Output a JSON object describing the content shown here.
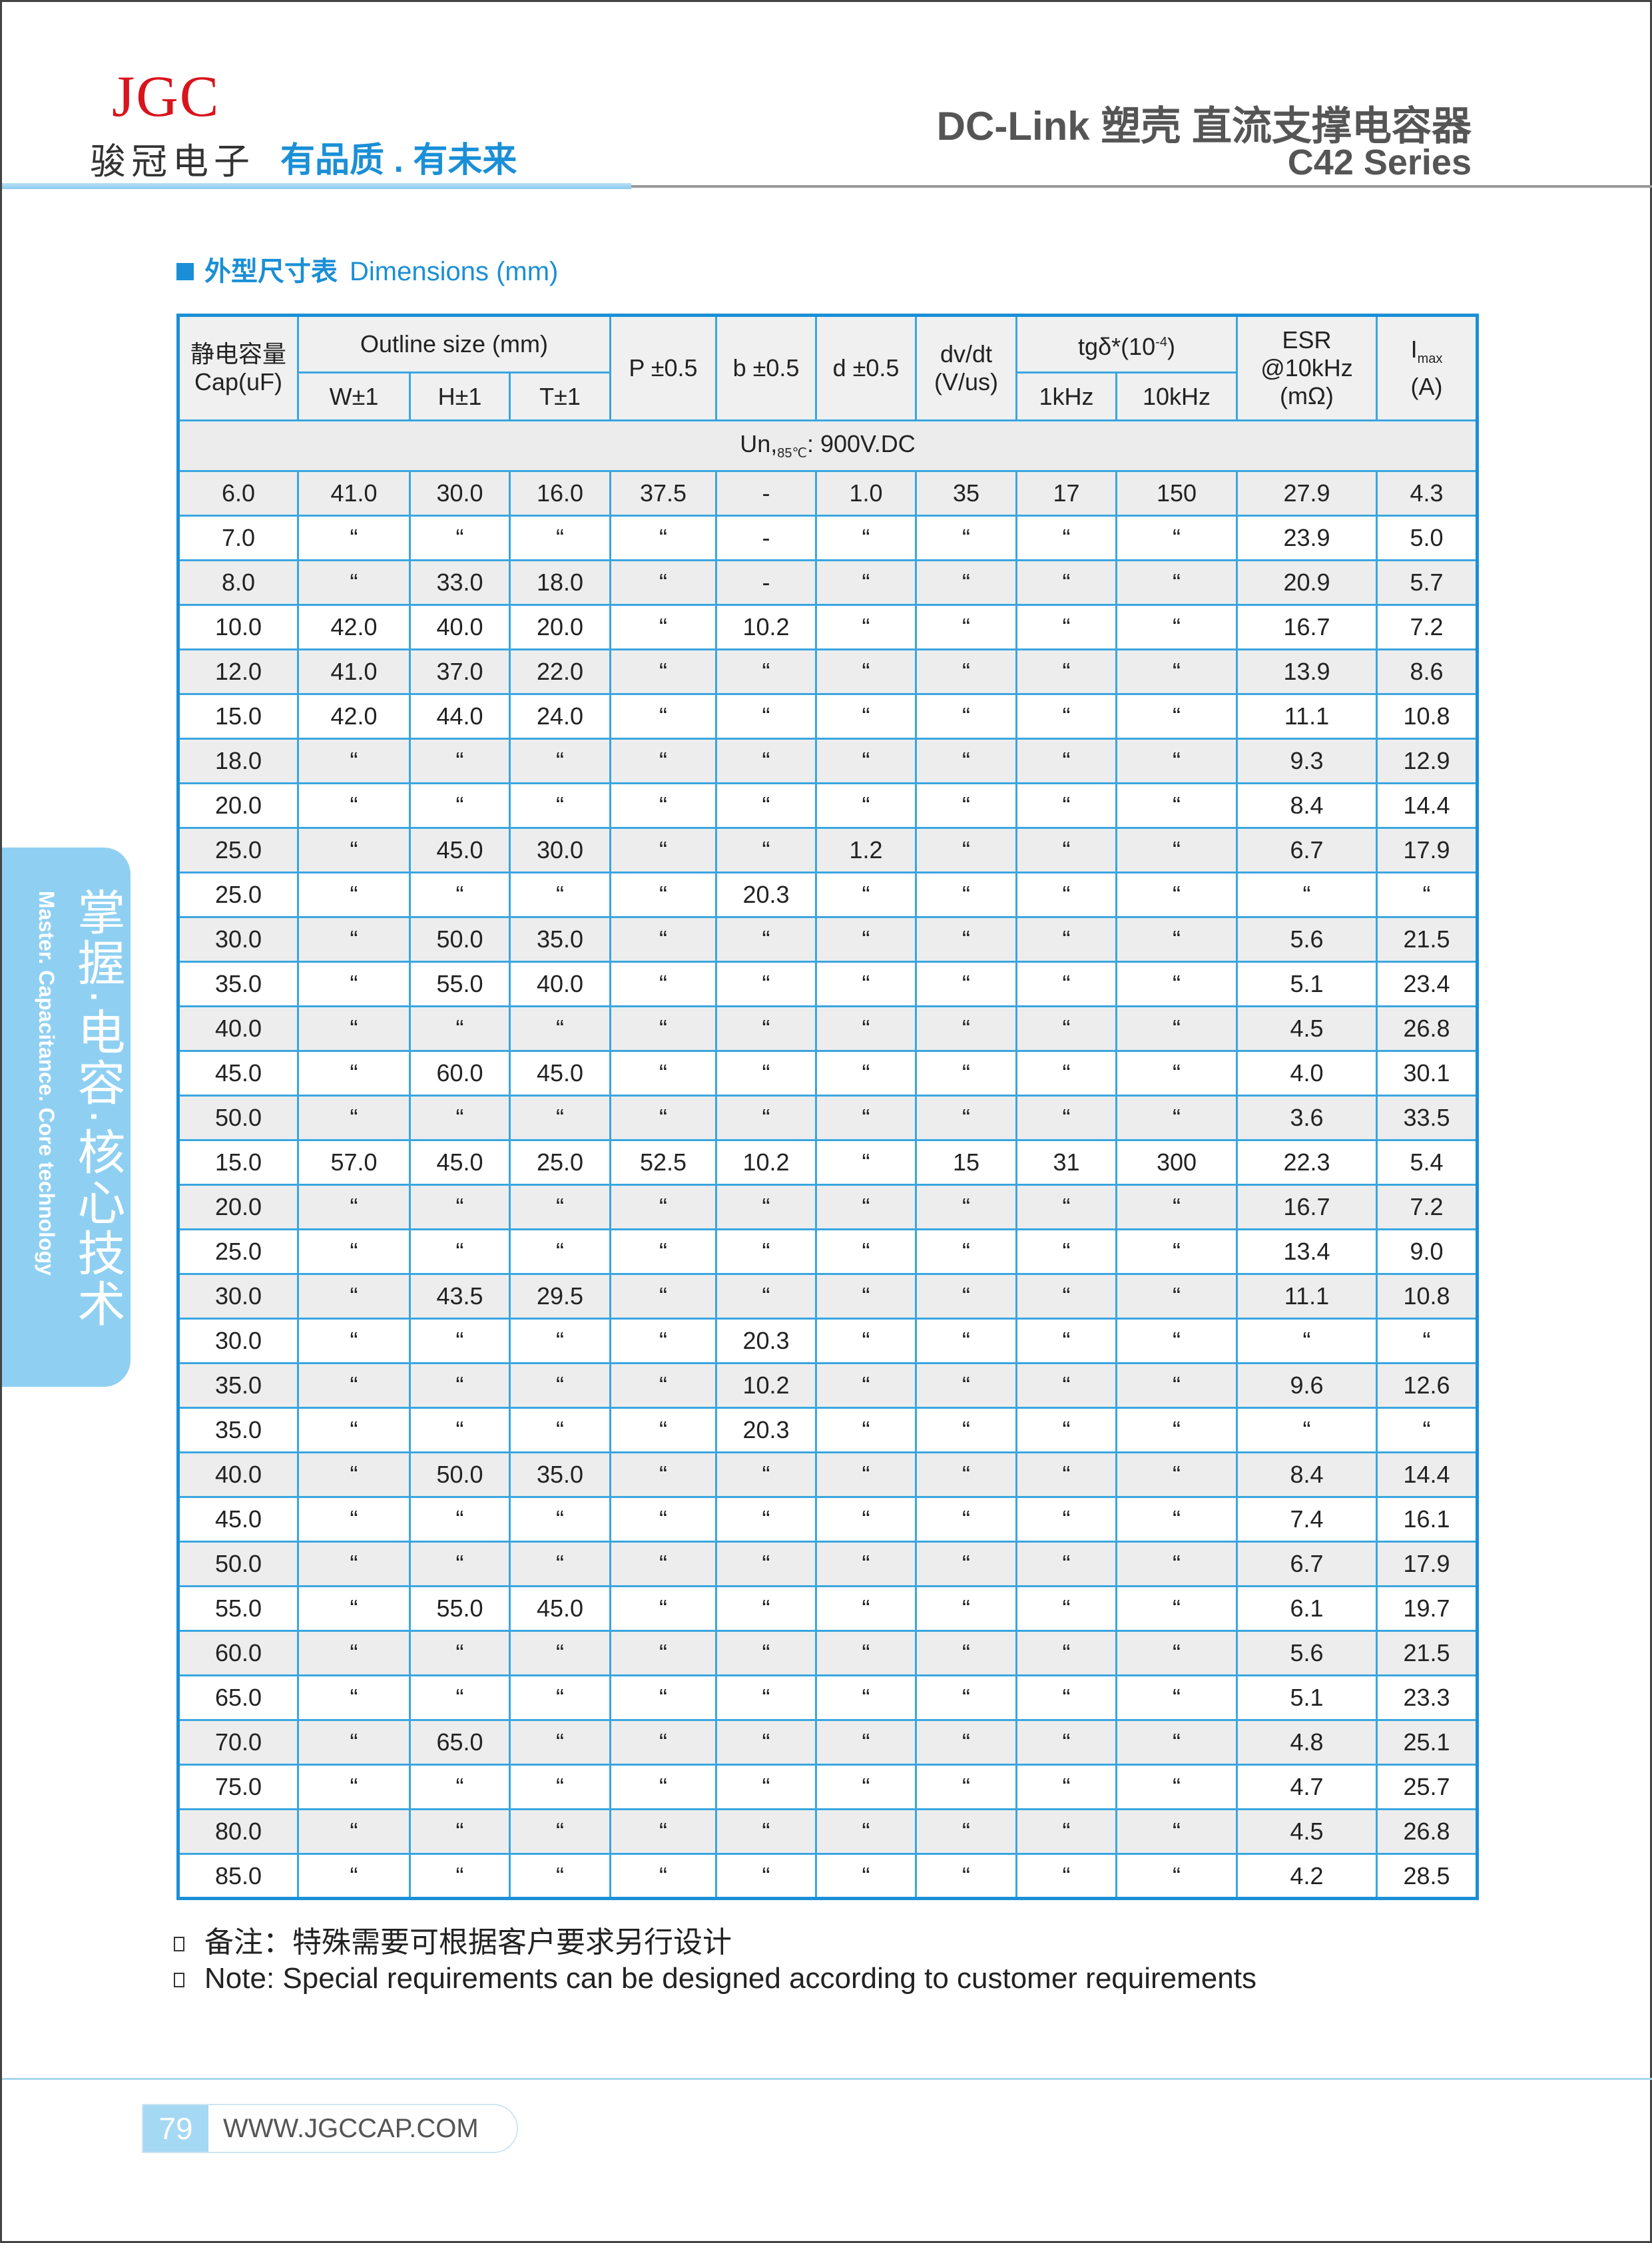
{
  "header": {
    "logo": "JGC",
    "brand_cn": "骏冠电子",
    "slogan": "有品质 . 有未来",
    "title": "DC-Link 塑壳 直流支撑电容器",
    "series": "C42 Series"
  },
  "section": {
    "title_cn": "外型尺寸表",
    "title_en": "Dimensions (mm)"
  },
  "table": {
    "headers": {
      "cap": "静电容量 Cap(uF)",
      "outline": "Outline size (mm)",
      "w": "W±1",
      "h": "H±1",
      "t": "T±1",
      "p": "P ±0.5",
      "b": "b ±0.5",
      "d": "d ±0.5",
      "dvdt": "dv/dt (V/us)",
      "tg_main": "tgδ*(10",
      "tg_exp": "-4",
      "tg_close": ")",
      "tg1": "1kHz",
      "tg10": "10kHz",
      "esr": "ESR @10kHz (mΩ)",
      "imax_i": "I",
      "imax_sub": "max",
      "imax_unit": "(A)"
    },
    "voltage_row": {
      "prefix": "Un,",
      "sub": "85℃",
      "value": ": 900V.DC"
    },
    "rows": [
      [
        "6.0",
        "41.0",
        "30.0",
        "16.0",
        "37.5",
        "-",
        "1.0",
        "35",
        "17",
        "150",
        "27.9",
        "4.3"
      ],
      [
        "7.0",
        "“",
        "“",
        "“",
        "“",
        "-",
        "“",
        "“",
        "“",
        "“",
        "23.9",
        "5.0"
      ],
      [
        "8.0",
        "“",
        "33.0",
        "18.0",
        "“",
        "-",
        "“",
        "“",
        "“",
        "“",
        "20.9",
        "5.7"
      ],
      [
        "10.0",
        "42.0",
        "40.0",
        "20.0",
        "“",
        "10.2",
        "“",
        "“",
        "“",
        "“",
        "16.7",
        "7.2"
      ],
      [
        "12.0",
        "41.0",
        "37.0",
        "22.0",
        "“",
        "“",
        "“",
        "“",
        "“",
        "“",
        "13.9",
        "8.6"
      ],
      [
        "15.0",
        "42.0",
        "44.0",
        "24.0",
        "“",
        "“",
        "“",
        "“",
        "“",
        "“",
        "11.1",
        "10.8"
      ],
      [
        "18.0",
        "“",
        "“",
        "“",
        "“",
        "“",
        "“",
        "“",
        "“",
        "“",
        "9.3",
        "12.9"
      ],
      [
        "20.0",
        "“",
        "“",
        "“",
        "“",
        "“",
        "“",
        "“",
        "“",
        "“",
        "8.4",
        "14.4"
      ],
      [
        "25.0",
        "“",
        "45.0",
        "30.0",
        "“",
        "“",
        "1.2",
        "“",
        "“",
        "“",
        "6.7",
        "17.9"
      ],
      [
        "25.0",
        "“",
        "“",
        "“",
        "“",
        "20.3",
        "“",
        "“",
        "“",
        "“",
        "“",
        "“"
      ],
      [
        "30.0",
        "“",
        "50.0",
        "35.0",
        "“",
        "“",
        "“",
        "“",
        "“",
        "“",
        "5.6",
        "21.5"
      ],
      [
        "35.0",
        "“",
        "55.0",
        "40.0",
        "“",
        "“",
        "“",
        "“",
        "“",
        "“",
        "5.1",
        "23.4"
      ],
      [
        "40.0",
        "“",
        "“",
        "“",
        "“",
        "“",
        "“",
        "“",
        "“",
        "“",
        "4.5",
        "26.8"
      ],
      [
        "45.0",
        "“",
        "60.0",
        "45.0",
        "“",
        "“",
        "“",
        "“",
        "“",
        "“",
        "4.0",
        "30.1"
      ],
      [
        "50.0",
        "“",
        "“",
        "“",
        "“",
        "“",
        "“",
        "“",
        "“",
        "“",
        "3.6",
        "33.5"
      ],
      [
        "15.0",
        "57.0",
        "45.0",
        "25.0",
        "52.5",
        "10.2",
        "“",
        "15",
        "31",
        "300",
        "22.3",
        "5.4"
      ],
      [
        "20.0",
        "“",
        "“",
        "“",
        "“",
        "“",
        "“",
        "“",
        "“",
        "“",
        "16.7",
        "7.2"
      ],
      [
        "25.0",
        "“",
        "“",
        "“",
        "“",
        "“",
        "“",
        "“",
        "“",
        "“",
        "13.4",
        "9.0"
      ],
      [
        "30.0",
        "“",
        "43.5",
        "29.5",
        "“",
        "“",
        "“",
        "“",
        "“",
        "“",
        "11.1",
        "10.8"
      ],
      [
        "30.0",
        "“",
        "“",
        "“",
        "“",
        "20.3",
        "“",
        "“",
        "“",
        "“",
        "“",
        "“"
      ],
      [
        "35.0",
        "“",
        "“",
        "“",
        "“",
        "10.2",
        "“",
        "“",
        "“",
        "“",
        "9.6",
        "12.6"
      ],
      [
        "35.0",
        "“",
        "“",
        "“",
        "“",
        "20.3",
        "“",
        "“",
        "“",
        "“",
        "“",
        "“"
      ],
      [
        "40.0",
        "“",
        "50.0",
        "35.0",
        "“",
        "“",
        "“",
        "“",
        "“",
        "“",
        "8.4",
        "14.4"
      ],
      [
        "45.0",
        "“",
        "“",
        "“",
        "“",
        "“",
        "“",
        "“",
        "“",
        "“",
        "7.4",
        "16.1"
      ],
      [
        "50.0",
        "“",
        "“",
        "“",
        "“",
        "“",
        "“",
        "“",
        "“",
        "“",
        "6.7",
        "17.9"
      ],
      [
        "55.0",
        "“",
        "55.0",
        "45.0",
        "“",
        "“",
        "“",
        "“",
        "“",
        "“",
        "6.1",
        "19.7"
      ],
      [
        "60.0",
        "“",
        "“",
        "“",
        "“",
        "“",
        "“",
        "“",
        "“",
        "“",
        "5.6",
        "21.5"
      ],
      [
        "65.0",
        "“",
        "“",
        "“",
        "“",
        "“",
        "“",
        "“",
        "“",
        "“",
        "5.1",
        "23.3"
      ],
      [
        "70.0",
        "“",
        "65.0",
        "“",
        "“",
        "“",
        "“",
        "“",
        "“",
        "“",
        "4.8",
        "25.1"
      ],
      [
        "75.0",
        "“",
        "“",
        "“",
        "“",
        "“",
        "“",
        "“",
        "“",
        "“",
        "4.7",
        "25.7"
      ],
      [
        "80.0",
        "“",
        "“",
        "“",
        "“",
        "“",
        "“",
        "“",
        "“",
        "“",
        "4.5",
        "26.8"
      ],
      [
        "85.0",
        "“",
        "“",
        "“",
        "“",
        "“",
        "“",
        "“",
        "“",
        "“",
        "4.2",
        "28.5"
      ]
    ]
  },
  "notes": {
    "cn": "备注：特殊需要可根据客户要求另行设计",
    "en": "Note: Special requirements can be designed according to customer requirements"
  },
  "side_tab": {
    "cn": "掌握·电容·核心技术",
    "en": "Master. Capacitance. Core technology"
  },
  "footer": {
    "page": "79",
    "url": "WWW.JGCCAP.COM"
  },
  "colors": {
    "accent": "#1a8fd6",
    "logo": "#d8141c",
    "side_tab": "#8fd0f2"
  }
}
